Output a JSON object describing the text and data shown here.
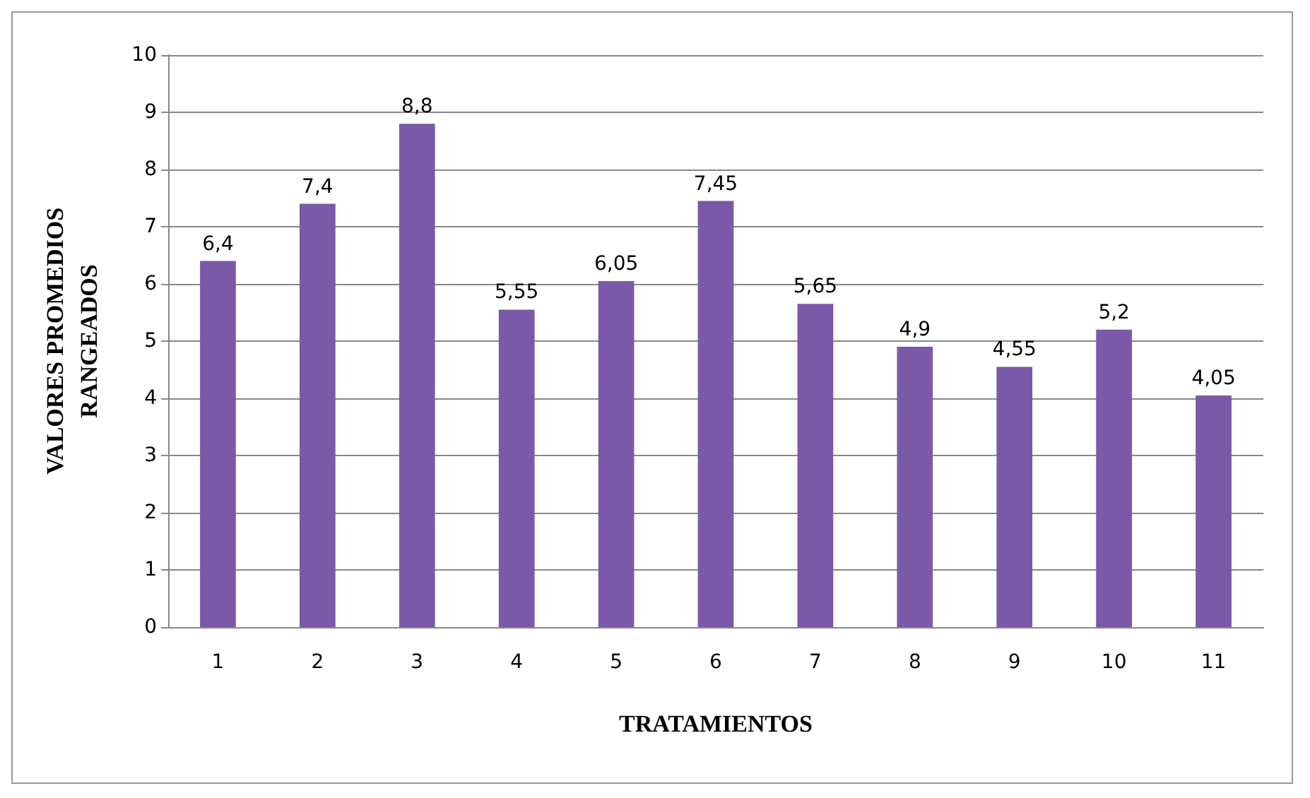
{
  "chart_data": {
    "type": "bar",
    "xlabel": "TRATAMIENTOS",
    "ylabel": "VALORES PROMEDIOS RANGEADOS",
    "categories": [
      "1",
      "2",
      "3",
      "4",
      "5",
      "6",
      "7",
      "8",
      "9",
      "10",
      "11"
    ],
    "values": [
      6.4,
      7.4,
      8.8,
      5.55,
      6.05,
      7.45,
      5.65,
      4.9,
      4.55,
      5.2,
      4.05
    ],
    "value_labels": [
      "6,4",
      "7,4",
      "8,8",
      "5,55",
      "6,05",
      "7,45",
      "5,65",
      "4,9",
      "4,55",
      "5,2",
      "4,05"
    ],
    "color": "#7a5aa8",
    "ylim": [
      0,
      10
    ],
    "yticks": [
      0,
      1,
      2,
      3,
      4,
      5,
      6,
      7,
      8,
      9,
      10
    ],
    "grid": "y"
  }
}
